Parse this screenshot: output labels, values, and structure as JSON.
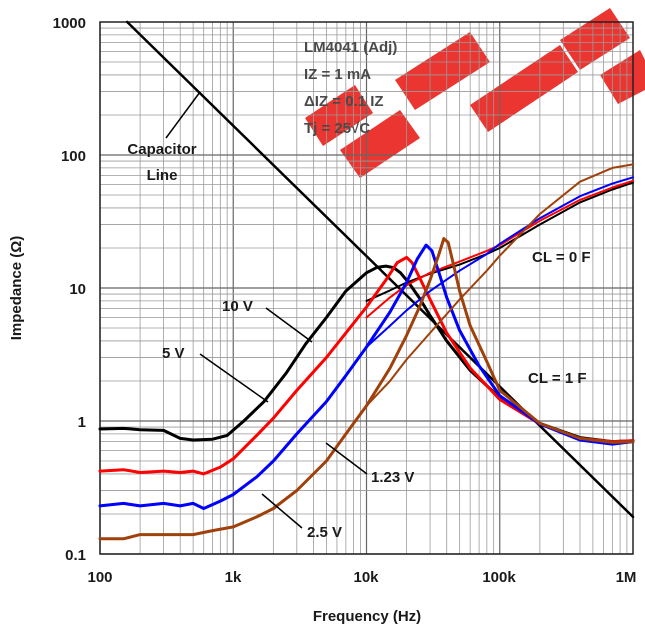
{
  "chart_data": {
    "type": "line",
    "title": "",
    "xlabel": "Frequency (Hz)",
    "ylabel": "Impedance (Ω)",
    "xscale": "log",
    "yscale": "log",
    "xlim": [
      100,
      1000000
    ],
    "ylim": [
      0.1,
      1000
    ],
    "grid": true,
    "x_tick_labels": [
      "100",
      "1k",
      "10k",
      "100k",
      "1M"
    ],
    "y_tick_labels": [
      "0.1",
      "1",
      "10",
      "100",
      "1000"
    ],
    "info_box": {
      "line1": "LM4041 (Adj)",
      "line2": "IZ = 1 mA",
      "line3": "ΔIZ = 0.1 IZ",
      "line4": "Tj = 25√C"
    },
    "annotations": {
      "capacitor_line": "Capacitor Line",
      "capacitor_line_1": "Capacitor",
      "capacitor_line_2": "Line",
      "v10": "10 V",
      "v5": "5 V",
      "v123": "1.23 V",
      "v25": "2.5 V",
      "cl0": "CL = 0   F",
      "cl1": "CL = 1   F"
    },
    "colors": {
      "10 V": "#000000",
      "5 V": "#ff0000",
      "1.23 V": "#0000ff",
      "2.5 V": "#a0400a",
      "capacitor_line": "#000000",
      "grid": "#9a9a9a",
      "watermark": "#e8201a"
    },
    "capacitor_line": {
      "x": [
        160,
        1000000
      ],
      "y": [
        1000,
        0.19
      ]
    },
    "series": [
      {
        "name": "10 V",
        "cl1": {
          "x": [
            100,
            150,
            200,
            300,
            400,
            500,
            700,
            900,
            1200,
            1700,
            2500,
            3500,
            5000,
            7000,
            10000,
            12000,
            14000,
            16000,
            18000,
            21000,
            25000,
            30000,
            40000,
            60000,
            100000,
            200000,
            400000,
            700000,
            1000000
          ],
          "y": [
            0.87,
            0.88,
            0.86,
            0.85,
            0.74,
            0.72,
            0.73,
            0.78,
            1.0,
            1.4,
            2.3,
            3.8,
            6.0,
            9.5,
            13.0,
            14.3,
            14.6,
            14.2,
            13.0,
            10.8,
            8.4,
            6.2,
            4.0,
            2.4,
            1.5,
            0.96,
            0.75,
            0.7,
            0.71
          ]
        },
        "cl0": {
          "x": [
            10000,
            15000,
            20000,
            30000,
            50000,
            80000,
            100000,
            200000,
            400000,
            700000,
            1000000
          ],
          "y": [
            8.0,
            9.6,
            11.0,
            12.8,
            15.0,
            18.0,
            20.0,
            30.0,
            44.0,
            55.0,
            62.0
          ]
        }
      },
      {
        "name": "5 V",
        "cl1": {
          "x": [
            100,
            150,
            200,
            300,
            400,
            500,
            600,
            800,
            1000,
            1500,
            2000,
            3000,
            5000,
            7000,
            10000,
            14000,
            17000,
            20000,
            22000,
            25000,
            30000,
            40000,
            60000,
            100000,
            200000,
            400000,
            700000,
            1000000
          ],
          "y": [
            0.42,
            0.43,
            0.41,
            0.42,
            0.41,
            0.42,
            0.4,
            0.45,
            0.52,
            0.78,
            1.05,
            1.7,
            3.0,
            4.6,
            7.2,
            11.5,
            15.5,
            17.0,
            15.5,
            12.0,
            8.2,
            4.6,
            2.5,
            1.45,
            0.95,
            0.74,
            0.7,
            0.71
          ]
        },
        "cl0": {
          "x": [
            10000,
            15000,
            20000,
            30000,
            50000,
            80000,
            100000,
            200000,
            400000,
            700000,
            1000000
          ],
          "y": [
            6.0,
            8.5,
            10.5,
            13.0,
            15.8,
            19.0,
            21.0,
            32.0,
            46.0,
            57.0,
            64.0
          ]
        }
      },
      {
        "name": "1.23 V",
        "cl1": {
          "x": [
            100,
            150,
            200,
            300,
            400,
            500,
            600,
            800,
            1000,
            1500,
            2000,
            3000,
            5000,
            7000,
            10000,
            15000,
            20000,
            24000,
            28000,
            31000,
            35000,
            40000,
            50000,
            70000,
            100000,
            200000,
            400000,
            700000,
            1000000
          ],
          "y": [
            0.23,
            0.24,
            0.23,
            0.24,
            0.23,
            0.24,
            0.22,
            0.25,
            0.28,
            0.38,
            0.5,
            0.8,
            1.4,
            2.2,
            3.6,
            6.6,
            11.0,
            16.5,
            21.0,
            19.0,
            13.0,
            8.5,
            4.8,
            2.6,
            1.55,
            0.95,
            0.72,
            0.67,
            0.7
          ]
        },
        "cl0": {
          "x": [
            10000,
            15000,
            20000,
            30000,
            50000,
            80000,
            100000,
            200000,
            400000,
            700000,
            1000000
          ],
          "y": [
            3.6,
            5.2,
            6.8,
            9.5,
            13.5,
            18.0,
            21.5,
            33.5,
            49.0,
            61.0,
            68.0
          ]
        }
      },
      {
        "name": "2.5 V",
        "cl1": {
          "x": [
            100,
            150,
            200,
            300,
            500,
            700,
            1000,
            1500,
            2000,
            3000,
            5000,
            7000,
            10000,
            15000,
            20000,
            25000,
            30000,
            35000,
            38000,
            41000,
            45000,
            50000,
            60000,
            80000,
            100000,
            200000,
            400000,
            700000,
            1000000
          ],
          "y": [
            0.13,
            0.13,
            0.14,
            0.14,
            0.14,
            0.15,
            0.16,
            0.19,
            0.22,
            0.3,
            0.5,
            0.8,
            1.3,
            2.5,
            4.4,
            7.2,
            11.5,
            18.0,
            23.5,
            22.0,
            15.0,
            9.5,
            5.2,
            2.8,
            1.7,
            0.96,
            0.74,
            0.69,
            0.7
          ]
        },
        "cl0": {
          "x": [
            10000,
            15000,
            20000,
            30000,
            50000,
            80000,
            100000,
            200000,
            400000,
            700000,
            1000000
          ],
          "y": [
            1.3,
            2.0,
            2.9,
            4.6,
            8.2,
            13.5,
            17.5,
            36.0,
            63.0,
            80.0,
            85.0
          ]
        }
      }
    ]
  }
}
